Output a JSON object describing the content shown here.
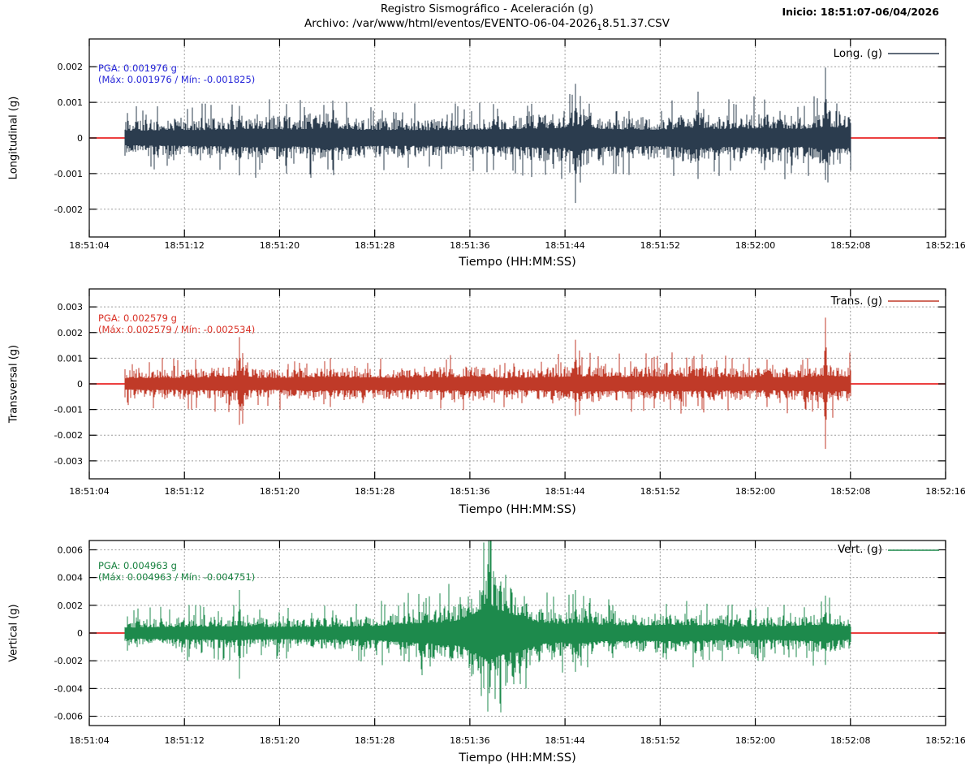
{
  "header": {
    "title": "Registro Sismográfico - Aceleración (g)",
    "file_prefix": "Archivo: /var/www/html/eventos/EVENTO-06-04-2026",
    "file_subscript": "1",
    "file_suffix": "8.51.37.CSV",
    "inicio": "Inicio: 18:51:07-06/04/2026"
  },
  "axes": {
    "xlabel": "Tiempo (HH:MM:SS)",
    "x_ticks": [
      "18:51:04",
      "18:51:12",
      "18:51:20",
      "18:51:28",
      "18:51:36",
      "18:51:44",
      "18:51:52",
      "18:52:00",
      "18:52:08",
      "18:52:16"
    ],
    "x_tick_interval_seconds": 8,
    "x_total_seconds": 72,
    "zero_line_color": "#e60000",
    "data_start_time": "18:51:07",
    "data_end_time": "18:52:08"
  },
  "chart_data": [
    {
      "type": "line",
      "panel": "longitudinal",
      "ylabel": "Longitudinal (g)",
      "legend": "Long. (g)",
      "color": "#2b3c4e",
      "annotation_color": "#2525d8",
      "pga_line": "PGA: 0.001976 g",
      "maxmin_line": "(Máx: 0.001976 / Mín: -0.001825)",
      "pga": 0.001976,
      "max": 0.001976,
      "min": -0.001825,
      "ylim": [
        -0.00278,
        0.00278
      ],
      "y_ticks": [
        0.002,
        0.001,
        0,
        -0.001,
        -0.002
      ],
      "y_tick_labels": [
        "0.002",
        "0.001",
        "0",
        "-0.001",
        "-0.002"
      ],
      "waveform_estimate": {
        "t_start": 3,
        "t_end": 64,
        "envelope_g": [
          [
            3,
            0.00045
          ],
          [
            10,
            0.0005
          ],
          [
            14,
            0.00058
          ],
          [
            17,
            0.00052
          ],
          [
            20,
            0.00062
          ],
          [
            23,
            0.0005
          ],
          [
            30,
            0.00048
          ],
          [
            36,
            0.00055
          ],
          [
            40,
            0.00062
          ],
          [
            41.5,
            0.00075
          ],
          [
            43,
            0.00055
          ],
          [
            48,
            0.0005
          ],
          [
            51,
            0.00065
          ],
          [
            53,
            0.00055
          ],
          [
            57,
            0.0006
          ],
          [
            60,
            0.00055
          ],
          [
            62,
            0.0007
          ],
          [
            64,
            0.00062
          ]
        ],
        "peaks_g": [
          [
            12.6,
            0.0009,
            -0.00105
          ],
          [
            16.6,
            0.00095,
            -0.001
          ],
          [
            20.5,
            0.00105,
            -0.0009
          ],
          [
            34,
            0.00095,
            -0.0009
          ],
          [
            40.9,
            0.00152,
            -0.001825
          ],
          [
            41.3,
            0.00118,
            -0.00125
          ],
          [
            51.2,
            0.0013,
            -0.00115
          ],
          [
            56.8,
            0.00108,
            -0.0009
          ],
          [
            61.9,
            0.001976,
            -0.00118
          ]
        ]
      }
    },
    {
      "type": "line",
      "panel": "transversal",
      "ylabel": "Transversal (g)",
      "legend": "Trans. (g)",
      "color": "#c03a28",
      "annotation_color": "#d93025",
      "pga_line": "PGA: 0.002579 g",
      "maxmin_line": "(Máx: 0.002579 / Mín: -0.002534)",
      "pga": 0.002579,
      "max": 0.002579,
      "min": -0.002534,
      "ylim": [
        -0.0037,
        0.0037
      ],
      "y_ticks": [
        0.003,
        0.002,
        0.001,
        0,
        -0.001,
        -0.002,
        -0.003
      ],
      "y_tick_labels": [
        "0.003",
        "0.002",
        "0.001",
        "0",
        "-0.001",
        "-0.002",
        "-0.003"
      ],
      "waveform_estimate": {
        "t_start": 3,
        "t_end": 64,
        "envelope_g": [
          [
            3,
            0.00048
          ],
          [
            8,
            0.00052
          ],
          [
            12,
            0.00058
          ],
          [
            15,
            0.0005
          ],
          [
            20,
            0.00058
          ],
          [
            25,
            0.00052
          ],
          [
            30,
            0.00055
          ],
          [
            33,
            0.00062
          ],
          [
            35,
            0.0005
          ],
          [
            40,
            0.0006
          ],
          [
            42,
            0.00065
          ],
          [
            45,
            0.00058
          ],
          [
            48,
            0.00062
          ],
          [
            52,
            0.0006
          ],
          [
            56,
            0.00055
          ],
          [
            60,
            0.00058
          ],
          [
            62,
            0.00068
          ],
          [
            64,
            0.0006
          ]
        ],
        "peaks_g": [
          [
            12.6,
            0.00182,
            -0.0016
          ],
          [
            12.9,
            0.0012,
            -0.00155
          ],
          [
            20.3,
            0.001,
            -0.0009
          ],
          [
            40.9,
            0.00172,
            -0.00125
          ],
          [
            41.2,
            0.0013,
            -0.0012
          ],
          [
            47.5,
            0.00105,
            -0.00095
          ],
          [
            51.5,
            0.00115,
            -0.001
          ],
          [
            57,
            0.00095,
            -0.0009
          ],
          [
            61.9,
            0.002579,
            -0.002534
          ]
        ]
      }
    },
    {
      "type": "line",
      "panel": "vertical",
      "ylabel": "Vertical (g)",
      "legend": "Vert. (g)",
      "color": "#1d8a4c",
      "annotation_color": "#17813f",
      "pga_line": "PGA: 0.004963 g",
      "maxmin_line": "(Máx: 0.004963 / Mín: -0.004751)",
      "pga": 0.004963,
      "max": 0.004963,
      "min": -0.004751,
      "ylim": [
        -0.00667,
        0.00667
      ],
      "y_ticks": [
        0.006,
        0.004,
        0.002,
        0,
        -0.002,
        -0.004,
        -0.006
      ],
      "y_tick_labels": [
        "0.006",
        "0.004",
        "0.002",
        "0",
        "-0.002",
        "-0.004",
        "-0.006"
      ],
      "waveform_estimate": {
        "t_start": 3,
        "t_end": 64,
        "envelope_g": [
          [
            3,
            0.00085
          ],
          [
            8,
            0.001
          ],
          [
            12,
            0.00105
          ],
          [
            16,
            0.00095
          ],
          [
            20,
            0.001
          ],
          [
            24,
            0.0011
          ],
          [
            26,
            0.0014
          ],
          [
            28,
            0.0016
          ],
          [
            30,
            0.0017
          ],
          [
            31.5,
            0.0022
          ],
          [
            33,
            0.0038
          ],
          [
            33.8,
            0.0042
          ],
          [
            34.5,
            0.0036
          ],
          [
            36,
            0.0028
          ],
          [
            37.5,
            0.0018
          ],
          [
            40,
            0.0014
          ],
          [
            41,
            0.0017
          ],
          [
            43,
            0.0013
          ],
          [
            46,
            0.0012
          ],
          [
            49,
            0.0013
          ],
          [
            52,
            0.0012
          ],
          [
            55,
            0.001
          ],
          [
            58,
            0.0011
          ],
          [
            62,
            0.0013
          ],
          [
            64,
            0.001
          ]
        ],
        "peaks_g": [
          [
            12.6,
            0.0031,
            -0.0033
          ],
          [
            16,
            0.0015,
            -0.0014
          ],
          [
            26.5,
            0.0022,
            -0.002
          ],
          [
            33.5,
            0.004963,
            -0.004
          ],
          [
            34.1,
            0.004,
            -0.004751
          ],
          [
            35,
            0.0042,
            -0.0038
          ],
          [
            40.9,
            0.0031,
            -0.0028
          ],
          [
            44,
            0.002,
            -0.0018
          ],
          [
            48.5,
            0.0021,
            -0.0019
          ],
          [
            56,
            0.0018,
            -0.0016
          ],
          [
            61.9,
            0.0027,
            -0.0023
          ]
        ]
      }
    }
  ]
}
